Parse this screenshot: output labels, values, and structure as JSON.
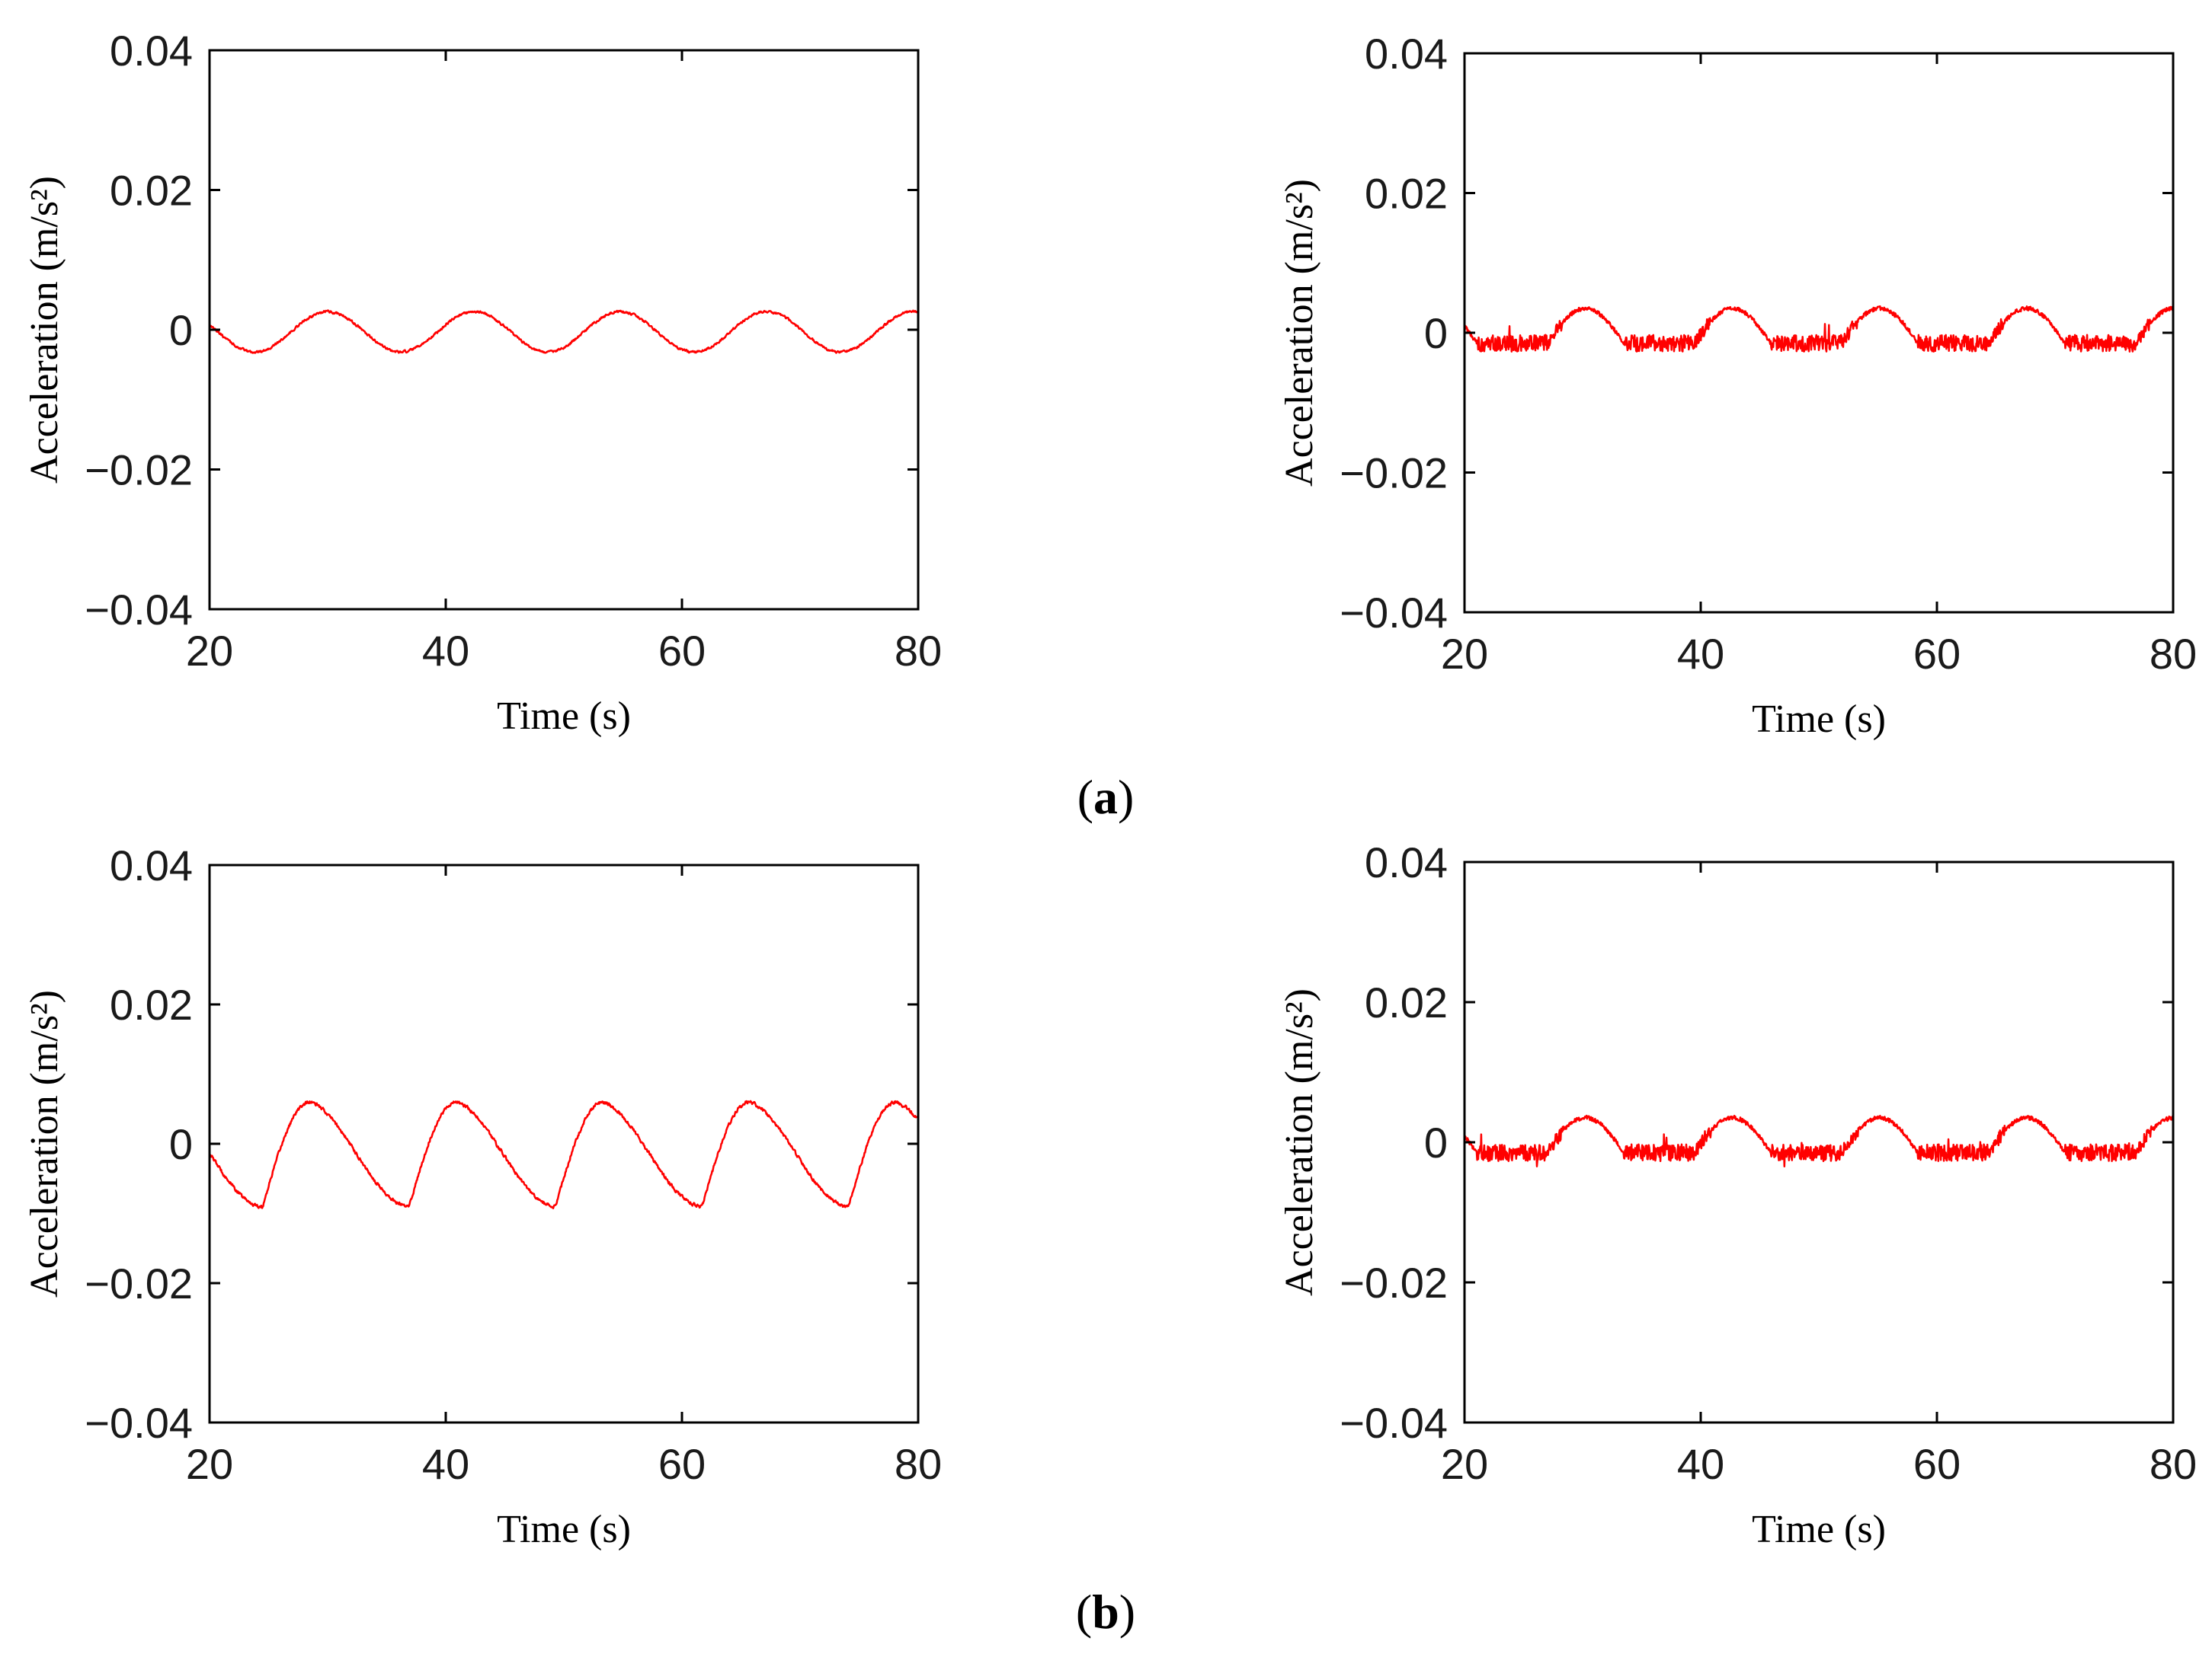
{
  "figure": {
    "panel_labels": [
      {
        "open": "(",
        "letter": "a",
        "close": ")"
      },
      {
        "open": "(",
        "letter": "b",
        "close": ")"
      }
    ]
  },
  "chart_data": [
    {
      "type": "line",
      "panel": "a",
      "position": "top-left",
      "xlabel": "Time (s)",
      "ylabel": "Acceleration (m/s²)",
      "xlim": [
        20,
        80
      ],
      "ylim": [
        -0.04,
        0.04
      ],
      "xticks": [
        "20",
        "40",
        "60",
        "80"
      ],
      "yticks": [
        "−0.04",
        "−0.02",
        "0",
        "0.02",
        "0.04"
      ],
      "series": [
        {
          "name": "acceleration",
          "color": "#ff0000",
          "shape": "smooth",
          "mean": -0.0003,
          "amplitude": 0.0029,
          "period": 12.4,
          "trough_time": 23.8,
          "noise": 0.0003,
          "x": [
            20,
            23.8,
            26.9,
            30,
            33.1,
            36.2,
            39.3,
            42.4,
            45.5,
            48.6,
            51.7,
            54.8,
            57.9,
            61,
            64.1,
            67.2,
            70.3,
            73.4,
            76.5,
            79.6,
            80
          ],
          "y": [
            0.001,
            -0.0035,
            -0.0003,
            0.0026,
            -0.0003,
            -0.0034,
            -0.0003,
            0.0026,
            -0.0003,
            -0.0034,
            -0.0003,
            0.0026,
            -0.0003,
            -0.0034,
            -0.0003,
            0.0026,
            -0.0003,
            -0.0034,
            -0.0003,
            0.0026,
            0.0025
          ]
        }
      ]
    },
    {
      "type": "line",
      "panel": "a",
      "position": "top-right",
      "xlabel": "Time (s)",
      "ylabel": "Acceleration (m/s²)",
      "xlim": [
        20,
        80
      ],
      "ylim": [
        -0.04,
        0.04
      ],
      "xticks": [
        "20",
        "40",
        "60",
        "80"
      ],
      "yticks": [
        "−0.04",
        "−0.02",
        "0",
        "0.02",
        "0.04"
      ],
      "series": [
        {
          "name": "acceleration",
          "color": "#ff0000",
          "shape": "hump",
          "base": -0.0015,
          "amplitude": 0.005,
          "period": 12.45,
          "hump_start": 27.0,
          "hump_width": 6.5,
          "noise": 0.0012,
          "x": [
            20,
            22,
            25,
            27,
            30,
            33.5,
            36,
            40,
            42.4,
            46,
            50,
            52.5,
            55,
            58,
            62,
            65,
            67.5,
            70.5,
            74,
            78,
            80
          ],
          "y": [
            0.0015,
            -0.0015,
            -0.0015,
            -0.0005,
            0.0035,
            -0.0005,
            -0.0015,
            -0.0005,
            0.0035,
            -0.0005,
            -0.0015,
            -0.0005,
            0.0035,
            -0.0005,
            -0.0015,
            -0.0005,
            0.0035,
            -0.0005,
            -0.0015,
            -0.0005,
            0.003
          ]
        }
      ]
    },
    {
      "type": "line",
      "panel": "b",
      "position": "bottom-left",
      "xlabel": "Time (s)",
      "ylabel": "Acceleration (m/s²)",
      "xlim": [
        20,
        80
      ],
      "ylim": [
        -0.04,
        0.04
      ],
      "xticks": [
        "20",
        "40",
        "60",
        "80"
      ],
      "yticks": [
        "−0.04",
        "−0.02",
        "0",
        "0.02",
        "0.04"
      ],
      "series": [
        {
          "name": "acceleration",
          "color": "#ff0000",
          "shape": "asymmetric",
          "peak": 0.006,
          "trough": -0.009,
          "period": 12.4,
          "trough_time": 24.5,
          "rise": 4.0,
          "noise": 0.0004,
          "x": [
            20,
            24.5,
            28.5,
            32,
            36.9,
            40.9,
            44.4,
            49.3,
            53.3,
            56.8,
            61.7,
            65.7,
            69.2,
            74.1,
            78.1,
            80
          ],
          "y": [
            0.0025,
            -0.009,
            0.006,
            0.002,
            -0.009,
            0.006,
            0.002,
            -0.009,
            0.006,
            0.002,
            -0.009,
            0.006,
            0.002,
            -0.009,
            0.006,
            0.005
          ]
        }
      ]
    },
    {
      "type": "line",
      "panel": "b",
      "position": "bottom-right",
      "xlabel": "Time (s)",
      "ylabel": "Acceleration (m/s²)",
      "xlim": [
        20,
        80
      ],
      "ylim": [
        -0.04,
        0.04
      ],
      "xticks": [
        "20",
        "40",
        "60",
        "80"
      ],
      "yticks": [
        "−0.04",
        "−0.02",
        "0",
        "0.02",
        "0.04"
      ],
      "series": [
        {
          "name": "acceleration",
          "color": "#ff0000",
          "shape": "hump",
          "base": -0.0015,
          "amplitude": 0.005,
          "period": 12.45,
          "hump_start": 27.0,
          "hump_width": 6.5,
          "noise": 0.0012,
          "x": [
            20,
            22,
            25,
            27,
            30,
            33.5,
            36,
            40,
            42.4,
            46,
            50,
            52.5,
            55,
            58,
            62,
            65,
            67.5,
            70.5,
            74,
            78,
            80
          ],
          "y": [
            0.0015,
            -0.0015,
            -0.0015,
            -0.0005,
            0.0035,
            -0.0005,
            -0.0015,
            -0.0005,
            0.0035,
            -0.0005,
            -0.0015,
            -0.0005,
            0.0035,
            -0.0005,
            -0.0015,
            -0.0005,
            0.0035,
            -0.0005,
            -0.0015,
            -0.0005,
            0.003
          ]
        }
      ]
    }
  ]
}
